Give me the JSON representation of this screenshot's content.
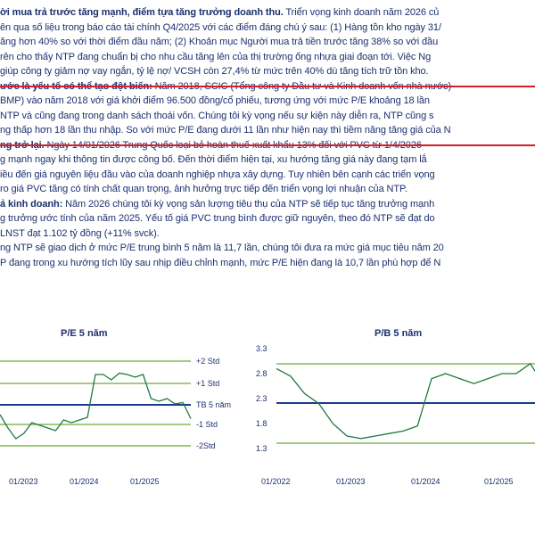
{
  "paragraphs": [
    {
      "prefix": "ời mua trả trước tăng mạnh, điểm tựa tăng trưởng doanh thu.",
      "text": " Triển vọng kinh doanh năm 2026 củ"
    },
    {
      "prefix": "",
      "text": "ên qua số liệu trong báo cáo tài chính Q4/2025 với các điểm đáng chú ý sau: (1) Hàng tồn kho ngày 31/"
    },
    {
      "prefix": "",
      "text": "ăng hơn 40% so với thời điểm đầu năm; (2) Khoản mục Người mua trả tiền trước tăng 38% so với đầu"
    },
    {
      "prefix": "",
      "text": "rên cho thấy NTP đang chuẩn bị cho nhu cầu tăng lên của thị trường ống nhựa giai đoạn tới. Việc Ng"
    },
    {
      "prefix": "",
      "text": "giúp công ty giảm nợ vay ngắn, tỷ lệ nợ/ VCSH còn 27,4% từ mức trên 40% dù tăng tích trữ tồn kho."
    },
    {
      "prefix": "ước là yếu tố có thể tạo đột biến:",
      "text": " Năm 2018, SCIC (Tổng công ty Đầu tư và Kinh doanh vốn nhà nước)"
    },
    {
      "prefix": "",
      "text": "BMP) vào năm 2018 với giá khởi điểm 96.500 đồng/cổ phiếu, tương ứng với mức P/E khoảng 18 lần"
    },
    {
      "prefix": "",
      "text": "NTP và cũng đang trong danh sách thoái vốn. Chúng tôi kỳ vọng nếu sự kiện này diễn ra, NTP cũng s"
    },
    {
      "prefix": "",
      "text": "ng thấp hơn 18 lần thu nhập. So với mức P/E đang dưới 11 lần như hiện nay thì tiềm năng tăng giá của N"
    },
    {
      "prefix": "ng trở lại.",
      "text": " Ngày 14/01/2026 Trung Quốc loại bỏ hoàn thuế xuất khẩu 13% đối với PVC từ 1/4/2026"
    },
    {
      "prefix": "",
      "text": "g mạnh ngay khi thông tin được công bố. Đến thời điểm hiện tại, xu hướng tăng giá này đang tạm lắ"
    },
    {
      "prefix": "",
      "text": "iều đến giá nguyên liệu đầu vào của doanh nghiệp nhựa xây dựng. Tuy nhiên bên cạnh các triển vọng"
    },
    {
      "prefix": "",
      "text": "ro giá PVC tăng có tính chất quan trọng, ảnh hưởng trực tiếp đến triển vọng lợi nhuận của NTP."
    },
    {
      "prefix": "ả kinh doanh:",
      "text": " Năm 2026 chúng tôi kỳ vọng sản lượng tiêu thụ của NTP sẽ tiếp tục tăng trưởng mạnh"
    },
    {
      "prefix": "",
      "text": "g trưởng ước tính của năm 2025. Yếu tố giá PVC trung bình được giữ nguyên, theo đó NTP sẽ đạt do"
    },
    {
      "prefix": "",
      "text": "LNST đạt 1.102 tỷ đồng (+11% svck)."
    },
    {
      "prefix": "",
      "text": "ng NTP sẽ giao dịch ở mức P/E trung bình 5 năm là 11,7 lần, chúng tôi đưa ra mức giá mục tiêu năm 20"
    },
    {
      "prefix": "",
      "text": "P đang trong xu hướng tích lũy sau nhịp điều chỉnh mạnh, mức P/E hiện đang là 10,7 lần phù hợp để N"
    }
  ],
  "charts": [
    {
      "title": "P/E 5 năm",
      "band_labels": [
        "+2 Std",
        "+1 Std",
        "TB 5 năm",
        "-1 Std",
        "-2Std"
      ],
      "x_ticks": [
        "01/2023",
        "01/2024",
        "01/2025"
      ],
      "series": {
        "x": [
          "2022-01",
          "2022-03",
          "2022-05",
          "2022-07",
          "2022-09",
          "2022-11",
          "2023-01",
          "2023-03",
          "2023-05",
          "2023-07",
          "2023-09",
          "2023-11",
          "2024-01",
          "2024-03",
          "2024-05",
          "2024-07",
          "2024-09",
          "2024-11",
          "2025-01",
          "2025-03",
          "2025-05",
          "2025-07",
          "2025-09",
          "2025-11",
          "2026-01"
        ],
        "y": [
          11.0,
          10.0,
          9.2,
          9.6,
          10.4,
          10.2,
          10.0,
          9.8,
          10.6,
          10.4,
          10.6,
          10.8,
          14.0,
          14.0,
          13.6,
          14.1,
          14.0,
          13.8,
          14.0,
          12.2,
          12.0,
          12.2,
          11.8,
          11.9,
          10.7
        ]
      }
    },
    {
      "title": "P/B 5 năm",
      "y_ticks": [
        "3.3",
        "2.8",
        "2.3",
        "1.8",
        "1.3"
      ],
      "x_ticks": [
        "01/2022",
        "01/2023",
        "01/2024",
        "01/2025"
      ],
      "series": {
        "x": [
          "2021-06",
          "2021-09",
          "2021-12",
          "2022-03",
          "2022-06",
          "2022-09",
          "2022-12",
          "2023-03",
          "2023-06",
          "2023-09",
          "2023-12",
          "2024-03",
          "2024-06",
          "2024-09",
          "2024-12",
          "2025-03",
          "2025-06",
          "2025-09",
          "2025-12",
          "2026-01"
        ],
        "y": [
          2.9,
          2.75,
          2.4,
          2.2,
          1.8,
          1.55,
          1.5,
          1.55,
          1.6,
          1.65,
          1.75,
          2.7,
          2.8,
          2.7,
          2.6,
          2.7,
          2.8,
          2.8,
          3.0,
          2.85
        ]
      }
    }
  ],
  "colors": {
    "text": "#1b2f6e",
    "rule": "#d41f2b",
    "series": "#1e7a3c",
    "mean": "#1b3a8c",
    "band": "#6cab3a"
  }
}
